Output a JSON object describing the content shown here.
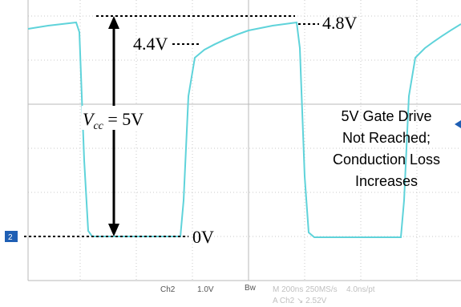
{
  "annotations": {
    "high_level": "4.8V",
    "mid_level": "4.4V",
    "vcc": {
      "symbol": "V",
      "subscript": "cc",
      "rest": " = 5V"
    },
    "low_level": "0V",
    "note": [
      "5V Gate Drive",
      "Not Reached;",
      "Conduction Loss",
      "Increases"
    ]
  },
  "scope": {
    "channel_marker": "2",
    "channel": "Ch2",
    "volts_per_div": "1.0V",
    "bandwidth": "Bw",
    "timebase": "M 200ns 250MS/s",
    "resolution": "4.0ns/pt",
    "trigger": "A  Ch2  ↘  2.52V"
  }
}
